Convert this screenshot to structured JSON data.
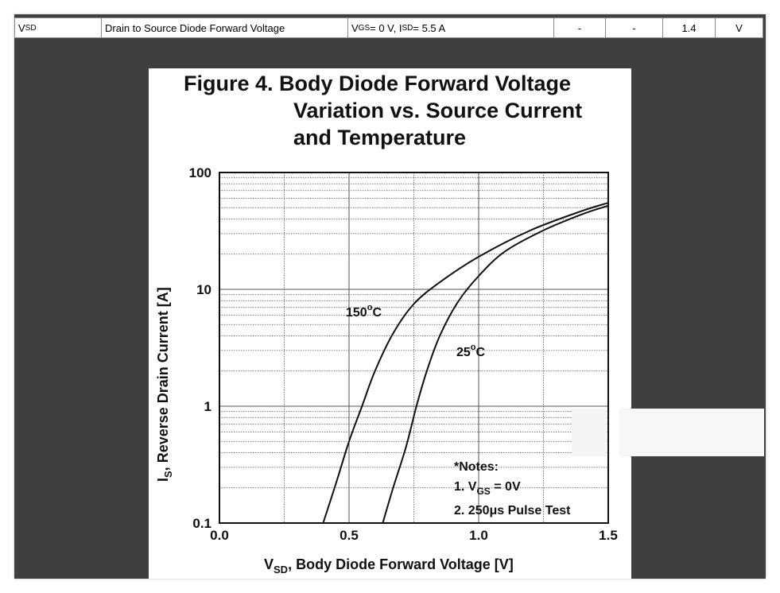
{
  "spec_row": {
    "symbol_main": "V",
    "symbol_sub": "SD",
    "parameter": "Drain to Source Diode Forward Voltage",
    "cond_a": "V",
    "cond_a_sub": "GS",
    "cond_b": " = 0 V, I",
    "cond_b_sub": "SD",
    "cond_c": " = 5.5 A",
    "min": "-",
    "typ": "-",
    "max": "1.4",
    "unit": "V"
  },
  "figure": {
    "title_line1": "Figure 4. Body Diode Forward Voltage",
    "title_line2": "Variation vs. Source Current",
    "title_line3": "and Temperature"
  },
  "chart_data": {
    "type": "line",
    "title": "Figure 4. Body Diode Forward Voltage Variation vs. Source Current and Temperature",
    "xlabel_main": "V",
    "xlabel_sub": "SD",
    "xlabel_rest": ", Body Diode Forward Voltage [V]",
    "ylabel_main": "I",
    "ylabel_sub": "S",
    "ylabel_rest": ", Reverse Drain Current [A]",
    "xlim": [
      0.0,
      1.5
    ],
    "ylim": [
      0.1,
      100
    ],
    "yscale": "log",
    "grid": true,
    "x_ticks": [
      "0.0",
      "0.5",
      "1.0",
      "1.5"
    ],
    "y_ticks": [
      "0.1",
      "1",
      "10",
      "100"
    ],
    "series": [
      {
        "name": "150°C",
        "label_main": "150",
        "label_deg": "o",
        "label_unit": "C",
        "points": [
          [
            0.4,
            0.1
          ],
          [
            0.45,
            0.22
          ],
          [
            0.5,
            0.5
          ],
          [
            0.55,
            1.0
          ],
          [
            0.6,
            2.0
          ],
          [
            0.67,
            4.2
          ],
          [
            0.75,
            7.5
          ],
          [
            0.85,
            11.5
          ],
          [
            1.0,
            19
          ],
          [
            1.2,
            32
          ],
          [
            1.4,
            47
          ],
          [
            1.5,
            55
          ]
        ]
      },
      {
        "name": "25°C",
        "label_main": "25",
        "label_deg": "o",
        "label_unit": "C",
        "points": [
          [
            0.63,
            0.1
          ],
          [
            0.67,
            0.2
          ],
          [
            0.72,
            0.45
          ],
          [
            0.76,
            1.0
          ],
          [
            0.8,
            2.0
          ],
          [
            0.85,
            4.0
          ],
          [
            0.92,
            7.8
          ],
          [
            1.0,
            13
          ],
          [
            1.1,
            21
          ],
          [
            1.25,
            32
          ],
          [
            1.4,
            44
          ],
          [
            1.5,
            52
          ]
        ]
      }
    ],
    "notes": {
      "header": "*Notes:",
      "note1_main": "1. V",
      "note1_sub": "GS",
      "note1_rest": " = 0V",
      "note2": "2. 250μs Pulse Test"
    }
  }
}
